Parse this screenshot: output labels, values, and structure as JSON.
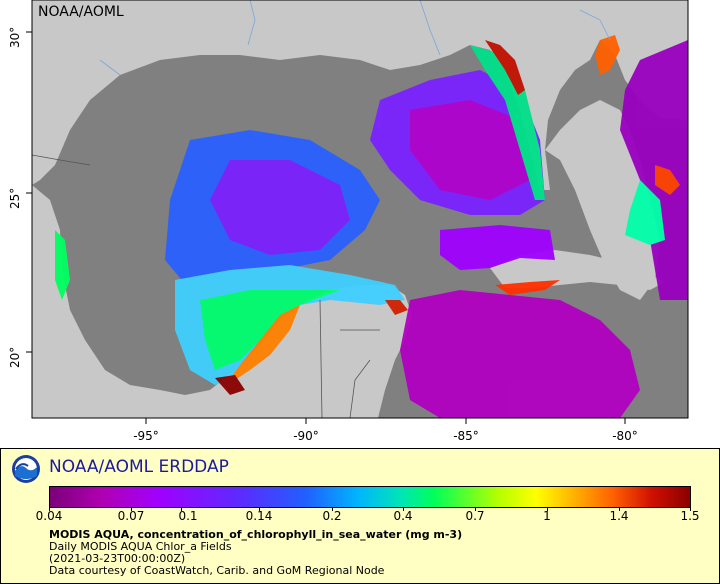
{
  "map": {
    "title": "NOAA/AOML",
    "x_ticks": [
      "-95°",
      "-90°",
      "-85°",
      "-80°"
    ],
    "y_ticks": [
      "30°",
      "25°",
      "20°"
    ],
    "colors": {
      "land": "#c8c8c8",
      "ocean_nodata": "#808080"
    }
  },
  "legend": {
    "brand": "NOAA/AOML ERDDAP",
    "colorbar_labels": [
      "0.04",
      "0.07",
      "0.1",
      "0.14",
      "0.2",
      "0.4",
      "0.7",
      "1",
      "1.4",
      "1.5"
    ],
    "variable_title": "MODIS AQUA, concentration_of_chlorophyll_in_sea_water (mg m-3)",
    "dataset": "Daily MODIS AQUA Chlor_a Fields",
    "time": "(2021-03-23T00:00:00Z)",
    "credit": "Data courtesy of CoastWatch, Carib. and GoM Regional Node"
  }
}
